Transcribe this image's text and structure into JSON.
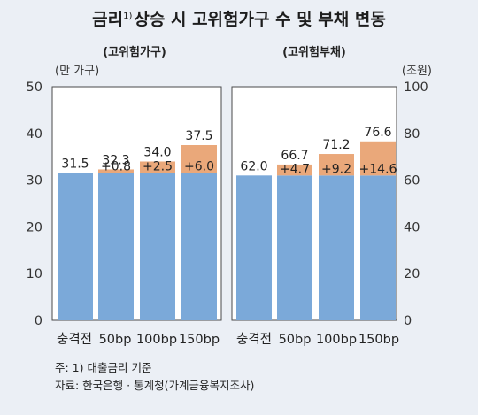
{
  "title": {
    "main_a": "금리",
    "superscript": "1)",
    "main_b": "상승 시 고위험가구 수 및 부채 변동"
  },
  "panel_left": {
    "subtitle": "(고위험가구)",
    "unit": "(만 가구)"
  },
  "panel_right": {
    "subtitle": "(고위험부채)",
    "unit": "(조원)"
  },
  "footnotes": {
    "note": "주: 1) 대출금리 기준",
    "source": "자료: 한국은행 · 통계청(가계금융복지조사)"
  },
  "colors": {
    "base": "#7ba9d9",
    "increment": "#eaa87a",
    "panel_bg": "#ffffff",
    "page_bg": "#ebeff5"
  },
  "chart_data": [
    {
      "type": "bar",
      "stacked": true,
      "subtitle": "(고위험가구)",
      "ylabel": "(만 가구)",
      "ylim": [
        0,
        50
      ],
      "yticks": [
        0,
        10,
        20,
        30,
        40,
        50
      ],
      "axis_side": "left",
      "categories": [
        "충격전",
        "50bp",
        "100bp",
        "150bp"
      ],
      "base_values": [
        31.5,
        31.5,
        31.5,
        31.5
      ],
      "increments": [
        0,
        0.8,
        2.5,
        6.0
      ],
      "total_labels": [
        "31.5",
        "32.3",
        "34.0",
        "37.5"
      ],
      "increment_labels": [
        "",
        "+0.8",
        "+2.5",
        "+6.0"
      ]
    },
    {
      "type": "bar",
      "stacked": true,
      "subtitle": "(고위험부채)",
      "ylabel": "(조원)",
      "ylim": [
        0,
        100
      ],
      "yticks": [
        0,
        20,
        40,
        60,
        80,
        100
      ],
      "axis_side": "right",
      "categories": [
        "충격전",
        "50bp",
        "100bp",
        "150bp"
      ],
      "base_values": [
        62.0,
        62.0,
        62.0,
        62.0
      ],
      "increments": [
        0,
        4.7,
        9.2,
        14.6
      ],
      "total_labels": [
        "62.0",
        "66.7",
        "71.2",
        "76.6"
      ],
      "increment_labels": [
        "",
        "+4.7",
        "+9.2",
        "+14.6"
      ]
    }
  ]
}
